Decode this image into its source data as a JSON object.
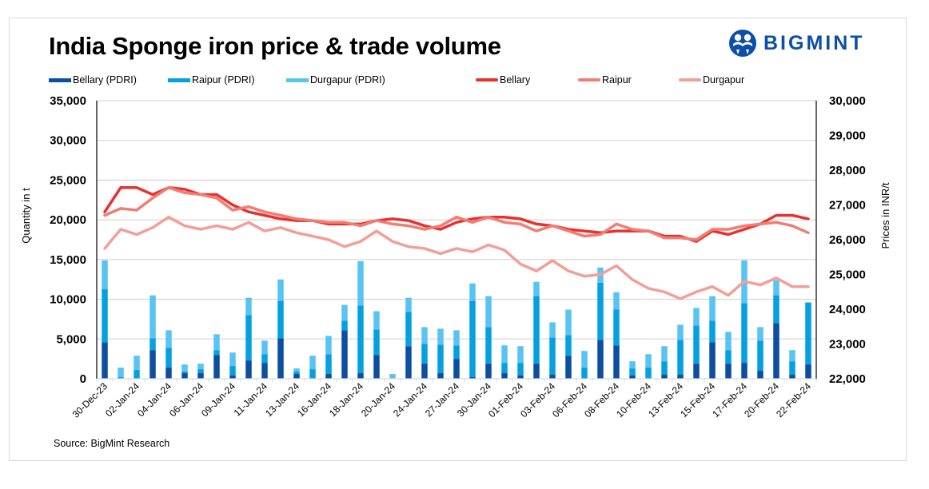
{
  "title": "India Sponge iron price & trade volume",
  "logo": {
    "text": "BIGMINT",
    "icon": "bigmint-people-icon",
    "color": "#0b4fa8"
  },
  "source": "Source: BigMint Research",
  "legend": [
    {
      "label": "Bellary (PDRI)",
      "type": "bar",
      "color": "#0b4fa0"
    },
    {
      "label": "Raipur (PDRI)",
      "type": "bar",
      "color": "#05a0df"
    },
    {
      "label": "Durgapur (PDRI)",
      "type": "bar",
      "color": "#58c4f2"
    },
    {
      "label": "Bellary",
      "type": "line",
      "color": "#e8312e"
    },
    {
      "label": "Raipur",
      "type": "line",
      "color": "#f17d73"
    },
    {
      "label": "Durgapur",
      "type": "line",
      "color": "#f39e98"
    }
  ],
  "chart_data": {
    "type": "bar+line",
    "title": "India Sponge iron price & trade volume",
    "ylabel": "Quantity in t",
    "y2label": "Prices in INR/t",
    "ylim": [
      0,
      35000
    ],
    "y2lim": [
      22000,
      30000
    ],
    "yticks": [
      "0",
      "5,000",
      "10,000",
      "15,000",
      "20,000",
      "25,000",
      "30,000",
      "35,000"
    ],
    "y2ticks": [
      "22,000",
      "23,000",
      "24,000",
      "25,000",
      "26,000",
      "27,000",
      "28,000",
      "29,000",
      "30,000"
    ],
    "grid": true,
    "legend_position": "top",
    "x_count": 45,
    "xtick_labels": [
      "30-Dec-23",
      "02-Jan-24",
      "04-Jan-24",
      "06-Jan-24",
      "09-Jan-24",
      "11-Jan-24",
      "13-Jan-24",
      "16-Jan-24",
      "18-Jan-24",
      "20-Jan-24",
      "24-Jan-24",
      "27-Jan-24",
      "30-Jan-24",
      "01-Feb-24",
      "03-Feb-24",
      "06-Feb-24",
      "08-Feb-24",
      "10-Feb-24",
      "13-Feb-24",
      "15-Feb-24",
      "17-Feb-24",
      "20-Feb-24",
      "22-Feb-24"
    ],
    "xtick_every": 2,
    "bar_series": [
      {
        "name": "Bellary (PDRI)",
        "color": "#0b4fa0",
        "values": [
          4600,
          0,
          0,
          3600,
          1400,
          700,
          700,
          3000,
          400,
          2300,
          2000,
          5100,
          600,
          0,
          600,
          6100,
          700,
          3000,
          0,
          4100,
          1900,
          700,
          2500,
          200,
          1900,
          700,
          400,
          1900,
          500,
          2900,
          0,
          4900,
          4200,
          400,
          0,
          500,
          500,
          1900,
          4600,
          1900,
          2000,
          1000,
          7000,
          500,
          1800
        ]
      },
      {
        "name": "Raipur (PDRI)",
        "color": "#05a0df",
        "values": [
          6700,
          200,
          1100,
          1500,
          2500,
          200,
          500,
          600,
          1200,
          5700,
          1100,
          4700,
          300,
          1200,
          2500,
          1200,
          8500,
          3200,
          0,
          4300,
          2500,
          3600,
          1700,
          9600,
          4600,
          1300,
          1600,
          8500,
          4700,
          2600,
          1400,
          7200,
          4500,
          900,
          1400,
          1700,
          4400,
          4800,
          2700,
          1700,
          7500,
          3800,
          3500,
          1700,
          7800
        ]
      },
      {
        "name": "Durgapur (PDRI)",
        "color": "#58c4f2",
        "values": [
          3600,
          1200,
          1800,
          5400,
          2200,
          900,
          700,
          2000,
          1700,
          2200,
          1700,
          2700,
          400,
          1700,
          2300,
          2000,
          5600,
          2300,
          600,
          1800,
          2100,
          2000,
          1900,
          2200,
          3900,
          2200,
          2100,
          1800,
          1900,
          3200,
          2100,
          1900,
          2200,
          900,
          1700,
          1900,
          1900,
          2200,
          3100,
          2300,
          5400,
          1700,
          1900,
          1400,
          0
        ]
      }
    ],
    "line_series": [
      {
        "name": "Bellary",
        "color": "#e8312e",
        "axis": "right",
        "values": [
          26800,
          27500,
          27500,
          27300,
          27500,
          27450,
          27300,
          27300,
          27000,
          26800,
          26700,
          26600,
          26550,
          26550,
          26450,
          26450,
          26450,
          26550,
          26600,
          26550,
          26400,
          26300,
          26500,
          26600,
          26650,
          26650,
          26600,
          26450,
          26400,
          26300,
          26250,
          26200,
          26250,
          26250,
          26250,
          26100,
          26100,
          25950,
          26250,
          26150,
          26300,
          26450,
          26700,
          26700,
          26600
        ]
      },
      {
        "name": "Raipur",
        "color": "#f17d73",
        "axis": "right",
        "values": [
          26700,
          26900,
          26850,
          27200,
          27500,
          27350,
          27300,
          27200,
          26850,
          26950,
          26800,
          26700,
          26600,
          26550,
          26500,
          26500,
          26400,
          26550,
          26450,
          26400,
          26300,
          26400,
          26650,
          26500,
          26650,
          26500,
          26450,
          26250,
          26400,
          26250,
          26100,
          26150,
          26450,
          26300,
          26250,
          26050,
          26050,
          26000,
          26300,
          26300,
          26400,
          26450,
          26500,
          26400,
          26200
        ]
      },
      {
        "name": "Durgapur",
        "color": "#f39e98",
        "axis": "right",
        "values": [
          25750,
          26300,
          26150,
          26350,
          26650,
          26400,
          26300,
          26400,
          26300,
          26500,
          26250,
          26350,
          26200,
          26100,
          26000,
          25800,
          25950,
          26250,
          25950,
          25800,
          25750,
          25600,
          25750,
          25650,
          25850,
          25700,
          25300,
          25100,
          25400,
          25100,
          24950,
          25000,
          25250,
          24850,
          24600,
          24500,
          24300,
          24500,
          24650,
          24400,
          24800,
          24700,
          24900,
          24650,
          24650
        ]
      }
    ]
  }
}
